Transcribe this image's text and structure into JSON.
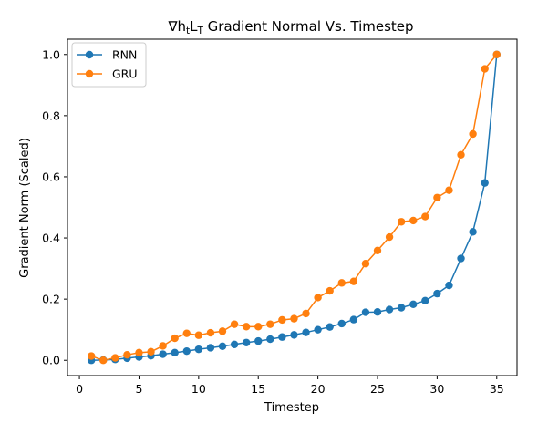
{
  "chart_data": {
    "type": "line",
    "title_prefix": "∇h",
    "title_sub1": "t",
    "title_mid": "L",
    "title_sub2": "T",
    "title_suffix": " Gradient Normal Vs. Timestep",
    "xlabel": "Timestep",
    "ylabel": "Gradient Norm (Scaled)",
    "xlim": [
      -1,
      36.7
    ],
    "ylim": [
      -0.05,
      1.05
    ],
    "xticks": [
      0,
      5,
      10,
      15,
      20,
      25,
      30,
      35
    ],
    "xtick_labels": [
      "0",
      "5",
      "10",
      "15",
      "20",
      "25",
      "30",
      "35"
    ],
    "yticks": [
      0.0,
      0.2,
      0.4,
      0.6,
      0.8,
      1.0
    ],
    "ytick_labels": [
      "0.0",
      "0.2",
      "0.4",
      "0.6",
      "0.8",
      "1.0"
    ],
    "grid": false,
    "legend_position": "top-left",
    "x": [
      1,
      2,
      3,
      4,
      5,
      6,
      7,
      8,
      9,
      10,
      11,
      12,
      13,
      14,
      15,
      16,
      17,
      18,
      19,
      20,
      21,
      22,
      23,
      24,
      25,
      26,
      27,
      28,
      29,
      30,
      31,
      32,
      33,
      34,
      35
    ],
    "series": [
      {
        "name": "RNN",
        "color": "#1f77b4",
        "values": [
          0.0,
          0.001,
          0.003,
          0.007,
          0.011,
          0.015,
          0.02,
          0.025,
          0.03,
          0.036,
          0.041,
          0.046,
          0.052,
          0.058,
          0.063,
          0.069,
          0.076,
          0.083,
          0.091,
          0.1,
          0.109,
          0.12,
          0.133,
          0.157,
          0.158,
          0.166,
          0.172,
          0.183,
          0.195,
          0.218,
          0.245,
          0.333,
          0.42,
          0.58,
          1.0
        ]
      },
      {
        "name": "GRU",
        "color": "#ff7f0e",
        "values": [
          0.014,
          0.0,
          0.008,
          0.018,
          0.025,
          0.028,
          0.047,
          0.072,
          0.088,
          0.082,
          0.09,
          0.095,
          0.118,
          0.11,
          0.11,
          0.118,
          0.132,
          0.136,
          0.153,
          0.205,
          0.227,
          0.253,
          0.258,
          0.316,
          0.359,
          0.403,
          0.453,
          0.457,
          0.47,
          0.532,
          0.556,
          0.672,
          0.74,
          0.953,
          1.0
        ]
      }
    ]
  }
}
